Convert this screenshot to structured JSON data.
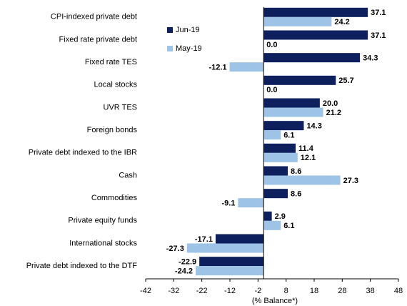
{
  "chart_data": {
    "type": "hbar",
    "categories": [
      "CPI-indexed private debt",
      "Fixed rate private debt",
      "Fixed rate TES",
      "Local stocks",
      "UVR TES",
      "Foreign bonds",
      "Private debt indexed to the IBR",
      "Cash",
      "Commodities",
      "Private equity funds",
      "International stocks",
      "Private debt indexed to the DTF"
    ],
    "series": [
      {
        "name": "Jun-19",
        "color": "#0d1f5c",
        "values": [
          37.1,
          37.1,
          34.3,
          25.7,
          20.0,
          14.3,
          11.4,
          8.6,
          8.6,
          2.9,
          -17.1,
          -22.9
        ],
        "value_labels": [
          "37.1",
          "37.1",
          "34.3",
          "25.7",
          "20.0",
          "14.3",
          "11.4",
          "8.6",
          "8.6",
          "2.9",
          "-17.1",
          "-22.9"
        ]
      },
      {
        "name": "May-19",
        "color": "#9dc3e6",
        "values": [
          24.2,
          0.0,
          -12.1,
          0.0,
          21.2,
          6.1,
          12.1,
          27.3,
          -9.1,
          6.1,
          -27.3,
          -24.2
        ],
        "value_labels": [
          "24.2",
          "0.0",
          "-12.1",
          "0.0",
          "21.2",
          "6.1",
          "12.1",
          "27.3",
          "-9.1",
          "6.1",
          "-27.3",
          "-24.2"
        ]
      }
    ],
    "xlabel": "(% Balance*)",
    "xlim": [
      -42,
      48
    ],
    "xticks": [
      -42,
      -32,
      -22,
      -12,
      -2,
      8,
      18,
      28,
      38,
      48
    ],
    "legend": "top-left"
  }
}
